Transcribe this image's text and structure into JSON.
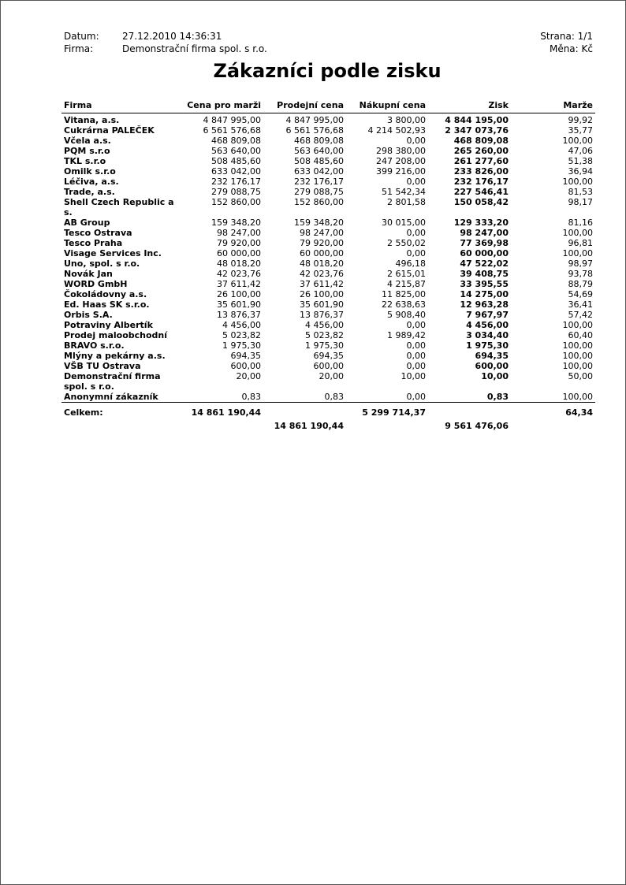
{
  "header": {
    "date_label": "Datum:",
    "date_value": "27.12.2010 14:36:31",
    "firm_label": "Firma:",
    "firm_value": "Demonstrační firma spol. s r.o.",
    "page": "Strana: 1/1",
    "currency": "Měna: Kč"
  },
  "title": "Zákazníci podle zisku",
  "columns": [
    "Firma",
    "Cena pro marži",
    "Prodejní cena",
    "Nákupní cena",
    "Zisk",
    "Marže"
  ],
  "rows": [
    [
      "Vitana, a.s.",
      "4 847 995,00",
      "4 847 995,00",
      "3 800,00",
      "4 844 195,00",
      "99,92"
    ],
    [
      "Cukrárna PALEČEK",
      "6 561 576,68",
      "6 561 576,68",
      "4 214 502,93",
      "2 347 073,76",
      "35,77"
    ],
    [
      "Včela a.s.",
      "468 809,08",
      "468 809,08",
      "0,00",
      "468 809,08",
      "100,00"
    ],
    [
      "PQM s.r.o",
      "563 640,00",
      "563 640,00",
      "298 380,00",
      "265 260,00",
      "47,06"
    ],
    [
      "TKL s.r.o",
      "508 485,60",
      "508 485,60",
      "247 208,00",
      "261 277,60",
      "51,38"
    ],
    [
      "Omilk s.r.o",
      "633 042,00",
      "633 042,00",
      "399 216,00",
      "233 826,00",
      "36,94"
    ],
    [
      "Léčiva, a.s.",
      "232 176,17",
      "232 176,17",
      "0,00",
      "232 176,17",
      "100,00"
    ],
    [
      "Trade, a.s.",
      "279 088,75",
      "279 088,75",
      "51 542,34",
      "227 546,41",
      "81,53"
    ],
    [
      "Shell Czech Republic a s.",
      "152 860,00",
      "152 860,00",
      "2 801,58",
      "150 058,42",
      "98,17"
    ],
    [
      "AB Group",
      "159 348,20",
      "159 348,20",
      "30 015,00",
      "129 333,20",
      "81,16"
    ],
    [
      "Tesco Ostrava",
      "98 247,00",
      "98 247,00",
      "0,00",
      "98 247,00",
      "100,00"
    ],
    [
      "Tesco Praha",
      "79 920,00",
      "79 920,00",
      "2 550,02",
      "77 369,98",
      "96,81"
    ],
    [
      "Visage Services Inc.",
      "60 000,00",
      "60 000,00",
      "0,00",
      "60 000,00",
      "100,00"
    ],
    [
      "Uno, spol. s r.o.",
      "48 018,20",
      "48 018,20",
      "496,18",
      "47 522,02",
      "98,97"
    ],
    [
      "Novák Jan",
      "42 023,76",
      "42 023,76",
      "2 615,01",
      "39 408,75",
      "93,78"
    ],
    [
      "WORD GmbH",
      "37 611,42",
      "37 611,42",
      "4 215,87",
      "33 395,55",
      "88,79"
    ],
    [
      "Čokoládovny a.s.",
      "26 100,00",
      "26 100,00",
      "11 825,00",
      "14 275,00",
      "54,69"
    ],
    [
      "Ed. Haas SK s.r.o.",
      "35 601,90",
      "35 601,90",
      "22 638,63",
      "12 963,28",
      "36,41"
    ],
    [
      "Orbis S.A.",
      "13 876,37",
      "13 876,37",
      "5 908,40",
      "7 967,97",
      "57,42"
    ],
    [
      "Potraviny Albertík",
      "4 456,00",
      "4 456,00",
      "0,00",
      "4 456,00",
      "100,00"
    ],
    [
      "Prodej maloobchodní",
      "5 023,82",
      "5 023,82",
      "1 989,42",
      "3 034,40",
      "60,40"
    ],
    [
      "BRAVO s.r.o.",
      "1 975,30",
      "1 975,30",
      "0,00",
      "1 975,30",
      "100,00"
    ],
    [
      "Mlýny a pekárny a.s.",
      "694,35",
      "694,35",
      "0,00",
      "694,35",
      "100,00"
    ],
    [
      "VŠB TU Ostrava",
      "600,00",
      "600,00",
      "0,00",
      "600,00",
      "100,00"
    ],
    [
      "Demonstrační firma spol. s r.o.",
      "20,00",
      "20,00",
      "10,00",
      "10,00",
      "50,00"
    ],
    [
      "Anonymní zákazník",
      "0,83",
      "0,83",
      "0,00",
      "0,83",
      "100,00"
    ]
  ],
  "totals": {
    "label": "Celkem:",
    "cena_pro_marzi": "14 861 190,44",
    "nakupni_cena": "5 299 714,37",
    "marze": "64,34",
    "prodejni_cena": "14 861 190,44",
    "zisk": "9 561 476,06"
  }
}
